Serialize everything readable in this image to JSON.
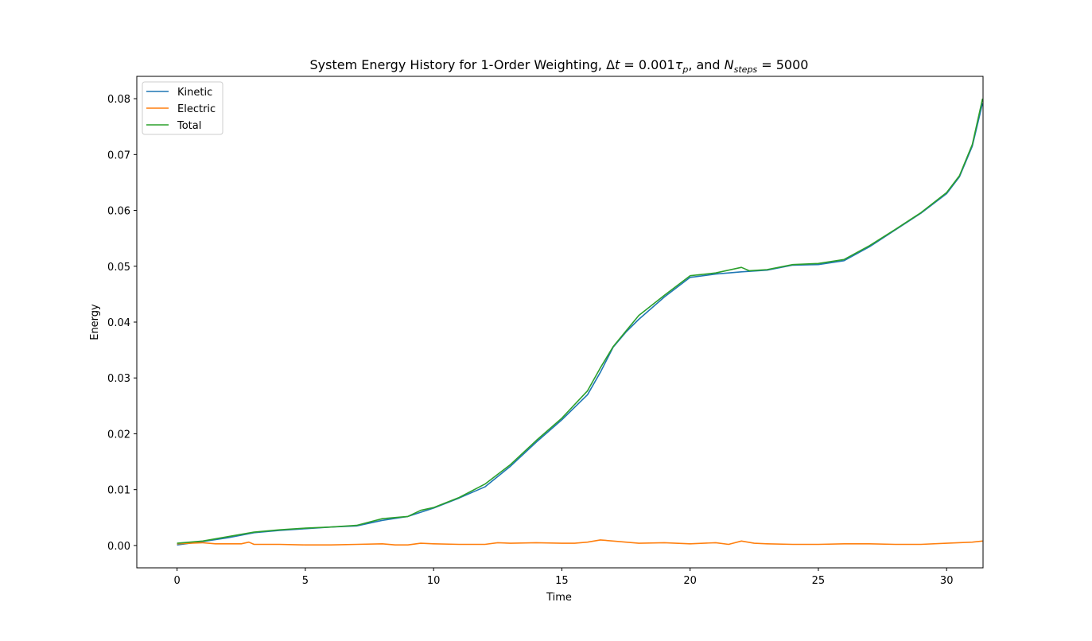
{
  "chart_data": {
    "type": "line",
    "title": {
      "prefix": "System Energy History for 1-Order Weighting, Δ",
      "t": "t",
      "mid1": " = 0.001",
      "tau": "τ",
      "tau_sub": "p",
      "mid2": ", and ",
      "N": "N",
      "N_sub": "steps",
      "suffix": " = 5000"
    },
    "xlabel": "Time",
    "ylabel": "Energy",
    "xlim": [
      -1.57,
      31.42
    ],
    "ylim": [
      -0.004,
      0.084
    ],
    "xticks": [
      0,
      5,
      10,
      15,
      20,
      25,
      30
    ],
    "xtick_labels": [
      "0",
      "5",
      "10",
      "15",
      "20",
      "25",
      "30"
    ],
    "yticks": [
      0.0,
      0.01,
      0.02,
      0.03,
      0.04,
      0.05,
      0.06,
      0.07,
      0.08
    ],
    "ytick_labels": [
      "0.00",
      "0.01",
      "0.02",
      "0.03",
      "0.04",
      "0.05",
      "0.06",
      "0.07",
      "0.08"
    ],
    "grid": false,
    "legend_position": "top-left",
    "series": [
      {
        "name": "Kinetic",
        "color": "#1f77b4",
        "x": [
          0,
          1,
          2,
          3,
          4,
          5,
          6,
          7,
          8,
          9,
          10,
          11,
          12,
          13,
          14,
          15,
          16,
          16.5,
          17,
          17.5,
          18,
          19,
          20,
          21,
          22,
          23,
          24,
          25,
          26,
          27,
          28,
          29,
          30,
          30.5,
          31,
          31.4
        ],
        "y": [
          0.0001,
          0.0007,
          0.0014,
          0.0023,
          0.0027,
          0.003,
          0.0033,
          0.0035,
          0.0045,
          0.0052,
          0.0067,
          0.0085,
          0.0105,
          0.0142,
          0.0185,
          0.0225,
          0.027,
          0.031,
          0.0355,
          0.0382,
          0.0405,
          0.0445,
          0.048,
          0.0486,
          0.049,
          0.0493,
          0.0502,
          0.0503,
          0.051,
          0.0535,
          0.0565,
          0.0595,
          0.063,
          0.066,
          0.0715,
          0.0792
        ]
      },
      {
        "name": "Electric",
        "color": "#ff7f0e",
        "x": [
          0,
          0.5,
          1,
          1.5,
          2,
          2.5,
          2.8,
          3,
          4,
          5,
          6,
          7,
          8,
          8.5,
          9,
          9.5,
          10,
          11,
          12,
          12.5,
          13,
          14,
          15,
          15.5,
          16,
          16.5,
          17,
          17.5,
          18,
          19,
          20,
          21,
          21.5,
          22,
          22.5,
          23,
          24,
          25,
          26,
          27,
          28,
          29,
          30,
          31,
          31.4
        ],
        "y": [
          0.0003,
          0.0004,
          0.0005,
          0.0003,
          0.0003,
          0.0003,
          0.0006,
          0.0002,
          0.0002,
          0.0001,
          0.0001,
          0.0002,
          0.0003,
          0.0001,
          0.0001,
          0.0004,
          0.0003,
          0.0002,
          0.0002,
          0.0005,
          0.0004,
          0.0005,
          0.0004,
          0.0004,
          0.0006,
          0.001,
          0.0008,
          0.0006,
          0.0004,
          0.0005,
          0.0003,
          0.0005,
          0.0002,
          0.0008,
          0.0004,
          0.0003,
          0.0002,
          0.0002,
          0.0003,
          0.0003,
          0.0002,
          0.0002,
          0.0004,
          0.0006,
          0.0008
        ]
      },
      {
        "name": "Total",
        "color": "#2ca02c",
        "x": [
          0,
          1,
          2,
          3,
          4,
          5,
          6,
          7,
          8,
          9,
          9.5,
          10,
          11,
          12,
          13,
          14,
          15,
          16,
          16.5,
          17,
          17.5,
          18,
          19,
          20,
          21,
          22,
          22.3,
          23,
          24,
          25,
          26,
          27,
          28,
          29,
          30,
          30.5,
          31,
          31.4
        ],
        "y": [
          0.0004,
          0.0008,
          0.0016,
          0.0024,
          0.0028,
          0.0031,
          0.0033,
          0.0036,
          0.0048,
          0.0052,
          0.0063,
          0.0068,
          0.0086,
          0.011,
          0.0145,
          0.0188,
          0.0228,
          0.0277,
          0.0318,
          0.0356,
          0.0384,
          0.0412,
          0.0448,
          0.0483,
          0.0488,
          0.0498,
          0.0492,
          0.0494,
          0.0503,
          0.0505,
          0.0512,
          0.0537,
          0.0566,
          0.0596,
          0.0632,
          0.0662,
          0.0718,
          0.08
        ]
      }
    ]
  }
}
